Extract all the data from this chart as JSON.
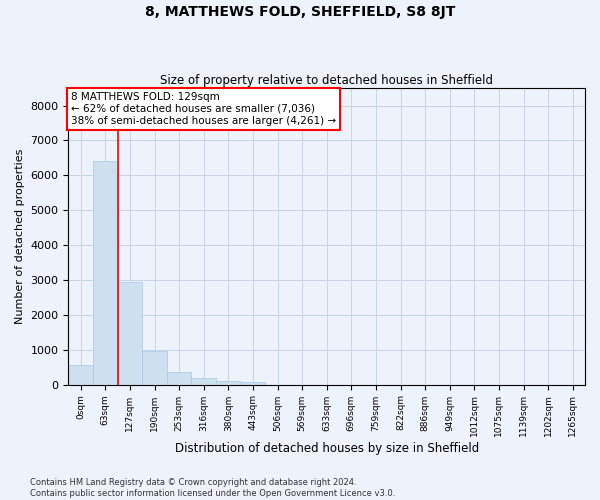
{
  "title": "8, MATTHEWS FOLD, SHEFFIELD, S8 8JT",
  "subtitle": "Size of property relative to detached houses in Sheffield",
  "xlabel": "Distribution of detached houses by size in Sheffield",
  "ylabel": "Number of detached properties",
  "footer_line1": "Contains HM Land Registry data © Crown copyright and database right 2024.",
  "footer_line2": "Contains public sector information licensed under the Open Government Licence v3.0.",
  "bar_labels": [
    "0sqm",
    "63sqm",
    "127sqm",
    "190sqm",
    "253sqm",
    "316sqm",
    "380sqm",
    "443sqm",
    "506sqm",
    "569sqm",
    "633sqm",
    "696sqm",
    "759sqm",
    "822sqm",
    "886sqm",
    "949sqm",
    "1012sqm",
    "1075sqm",
    "1139sqm",
    "1202sqm",
    "1265sqm"
  ],
  "bar_values": [
    560,
    6400,
    2950,
    950,
    360,
    175,
    105,
    80,
    0,
    0,
    0,
    0,
    0,
    0,
    0,
    0,
    0,
    0,
    0,
    0,
    0
  ],
  "bar_color": "#cce0f0",
  "bar_edge_color": "#a8c8e8",
  "grid_color": "#c8d4e8",
  "background_color": "#eef2fa",
  "annotation_box_text": "8 MATTHEWS FOLD: 129sqm\n← 62% of detached houses are smaller (7,036)\n38% of semi-detached houses are larger (4,261) →",
  "annotation_box_color": "white",
  "annotation_box_edge_color": "red",
  "vline_x": 1.5,
  "vline_color": "red",
  "ylim": [
    0,
    8500
  ],
  "yticks": [
    0,
    1000,
    2000,
    3000,
    4000,
    5000,
    6000,
    7000,
    8000
  ]
}
